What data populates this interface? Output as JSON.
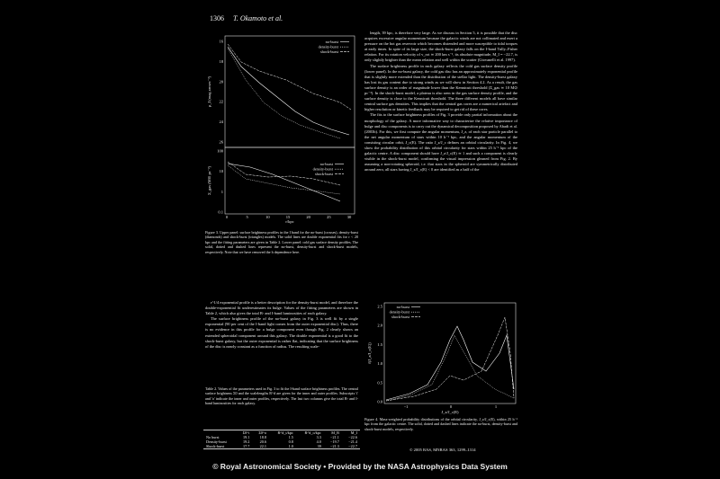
{
  "header": {
    "page_number": "1306",
    "authors": "T. Okamoto et al."
  },
  "figure3": {
    "legend_top": [
      "no-burst",
      "density-burst",
      "shock-burst"
    ],
    "legend_bottom": [
      "no-burst",
      "density-burst",
      "shock-burst"
    ],
    "y_label_top": "μ_I (mag arcsec⁻²)",
    "y_label_bottom": "Σ_gas (M⊙ pc⁻²)",
    "x_label": "r/kpc",
    "yticks_top": [
      "16",
      "18",
      "20",
      "22",
      "24",
      "26"
    ],
    "yticks_bottom": [
      "100",
      "10",
      "1",
      "0.1"
    ],
    "xticks": [
      "0",
      "5",
      "10",
      "15",
      "20",
      "25",
      "30"
    ],
    "caption": "Figure 3. Upper panel: surface brightness profiles in the I band for the no-burst (crosses), density-burst (diamonds) and shock-burst (triangles) models. The solid lines are double exponential fits for r < 20 kpc and the fitting parameters are given in Table 2. Lower panel: cold gas surface density profiles. The solid, dotted and dashed lines represent the no-burst, density-burst and shock-burst models, respectively. Note that we have removed the h dependence here."
  },
  "left_text": [
    "r^1/4 exponential profile is a better description for the density-burst model, and therefore the double-exponential fit underestimates its bulge. Values of the fitting parameters are shown in Table 2, which also gives the total B- and I-band luminosities of each galaxy.",
    "The surface brightness profile of the no-burst galaxy in Fig. 3 is well fit by a single exponential (90 per cent of the I-band light comes from the outer exponential disc). Thus, there is no evidence in this profile for a bulge component even though Fig. 2 clearly shows an extended spheroidal component around this galaxy. The double exponential is a good fit to the shock-burst galaxy, but the outer exponential is rather flat, indicating that the surface brightness of the disc is nearly constant as a function of radius. The resulting scale-"
  ],
  "table2": {
    "caption": "Table 2. Values of the parameters used in Fig. 3 to fit the I-band surface brightness profiles. The central surface brightness Σ0 and the scalelengths R^d are given for the inner and outer profiles. Subscripts 'i' and 'o' indicate the inner and outer profiles, respectively. The last two columns give the total B- and I-band luminosities for each galaxy.",
    "columns": [
      "",
      "Σ0^i",
      "Σ0^o",
      "R^d_i/kpc",
      "R^d_o/kpc",
      "M_B",
      "M_I"
    ],
    "rows": [
      [
        "No burst",
        "19.1",
        "18.8",
        "1.5",
        "3.3",
        "−21.1",
        "−22.6"
      ],
      [
        "Density-burst",
        "19.2",
        "20.6",
        "0.8",
        "4.0",
        "−19.7",
        "−21.4"
      ],
      [
        "Shock-burst",
        "17.7",
        "22.1",
        "1.0",
        "39",
        "−21.3",
        "−22.7"
      ]
    ]
  },
  "right_text": [
    "length, 39 kpc, is therefore very large. As we discuss in Section 5, it is possible that the disc acquires excessive angular momentum because the galactic winds are not collimated and exert a pressure on the hot gas reservoir which becomes distended and more susceptible to tidal torques at early times. In spite of its large size, the shock-burst galaxy falls on the I-band Tully–Fisher relation. For its rotation velocity of v_rot ≃ 200 km s⁻¹, its absolute magnitude, M_I = −22.7, is only slightly brighter than the mean relation and well within the scatter (Giovanelli et al. 1997).",
    "The surface brightness profile in each galaxy reflects the cold gas surface density profile (lower panel). In the no-burst galaxy, the cold gas disc has an approximately exponential profile that is slightly more extended than the distribution of the stellar light. The density-burst galaxy has lost its gas content due to strong winds as we will show in Section 4.2. As a result, the gas surface density is an order of magnitude lower than the Kennicutt threshold (Σ_gas ≃ 10 M⊙ pc⁻²). In the shock-burst model, a plateau is also seen in the gas surface density profile, and the surface density is close to the Kennicutt threshold. The three different models all have similar central surface gas densities. This implies that the central gas cores are a numerical artefact and higher resolution or kinetic feedback may be required to get rid of these cores.",
    "The fits to the surface brightness profiles of Fig. 3 provide only partial information about the morphology of the galaxy. A more informative way to characterize the relative importance of bulge and disc components is to carry out the dynamical decomposition proposed by Abadi et al. (2003b). For this, we first compute the angular momentum, J_z, of each star particle parallel to the net angular momentum of stars within 10 h⁻¹ kpc, and the angular momentum of the consisting circular orbit, J_c(E). The ratio J_z/J_c defines an orbital circularity. In Fig. 4, we show the probability distribution of this orbital circularity for stars within 25 h⁻¹ kpc of the galactic centre. A disc component should have J_z/J_c(E) ≃ 1 and such a component is clearly visible in the shock-burst model, confirming the visual impression gleaned from Fig. 2. By assuming a non-rotating spheroid, i.e. that stars in the spheroid are symmetrically distributed around zero, all stars having J_z/J_c(E) < 0 are identified as a half of the"
  ],
  "figure4": {
    "legend": [
      "no-burst",
      "density-burst",
      "shock-burst"
    ],
    "y_label": "f(J_z/J_c(E))",
    "x_label": "J_z/J_c(E)",
    "yticks": [
      "2.5",
      "2.0",
      "1.5",
      "1.0",
      "0.5",
      "0.0"
    ],
    "xticks": [
      "−1",
      "0",
      "1"
    ],
    "caption": "Figure 4. Mass-weighted probability distributions of the orbital circularity, J_z/J_c(E), within 25 h⁻¹ kpc from the galactic centre. The solid, dotted and dashed lines indicate the no-burst, density-burst and shock-burst models, respectively."
  },
  "footer": {
    "copyright": "© 2005 RAS, MNRAS 363, 1299–1314"
  },
  "banner": "© Royal Astronomical Society • Provided by the NASA Astrophysics Data System"
}
